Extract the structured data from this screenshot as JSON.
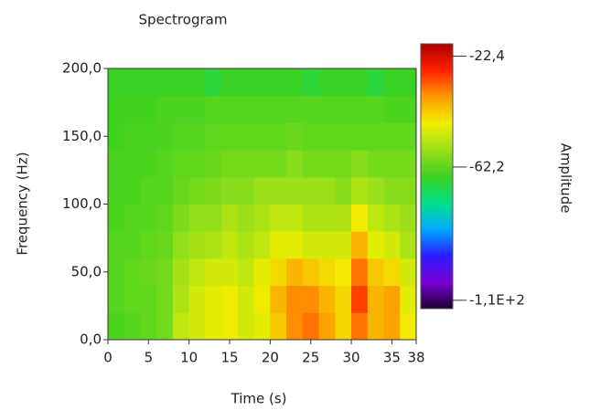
{
  "chart_data": {
    "type": "spectrogram",
    "title": "Spectrogram",
    "x_label": "Time (s)",
    "y_label": "Frequency (Hz)",
    "z_label": "Amplitude",
    "xlim": [
      0,
      38
    ],
    "xticks": [
      0,
      5,
      10,
      15,
      20,
      25,
      30,
      35,
      38
    ],
    "ylim": [
      0,
      200
    ],
    "yticks": [
      {
        "value": 0,
        "label": "0,0"
      },
      {
        "value": 50,
        "label": "50,0"
      },
      {
        "value": 100,
        "label": "100,0"
      },
      {
        "value": 150,
        "label": "150,0"
      },
      {
        "value": 200,
        "label": "200,0"
      }
    ],
    "zlim": [
      -113,
      -18
    ],
    "zticks": [
      {
        "value": -22.4,
        "label": "-22,4"
      },
      {
        "value": -62.2,
        "label": "-62,2"
      },
      {
        "value": -110,
        "label": "-1,1E+2"
      }
    ],
    "colormap": [
      "#1a0030",
      "#7a00d6",
      "#2a1cff",
      "#00aaff",
      "#00e08a",
      "#3cd11e",
      "#9be01a",
      "#f0f000",
      "#ff9a00",
      "#ff2000",
      "#b00000"
    ],
    "xbins": [
      0,
      2,
      4,
      6,
      8,
      10,
      12,
      14,
      16,
      18,
      20,
      22,
      24,
      26,
      28,
      30,
      32,
      34,
      36,
      38
    ],
    "ybins": [
      0,
      20,
      40,
      60,
      80,
      100,
      120,
      140,
      160,
      180,
      200
    ],
    "z": [
      [
        -64,
        -63,
        -62,
        -60,
        -52,
        -50,
        -48,
        -46,
        -50,
        -48,
        -42,
        -36,
        -34,
        -38,
        -44,
        -34,
        -40,
        -38,
        -46
      ],
      [
        -63,
        -62,
        -62,
        -60,
        -54,
        -50,
        -48,
        -46,
        -50,
        -46,
        -40,
        -36,
        -36,
        -40,
        -44,
        -30,
        -40,
        -38,
        -48
      ],
      [
        -63,
        -62,
        -61,
        -60,
        -55,
        -52,
        -50,
        -50,
        -52,
        -48,
        -44,
        -40,
        -42,
        -44,
        -46,
        -34,
        -42,
        -44,
        -50
      ],
      [
        -63,
        -63,
        -62,
        -61,
        -57,
        -55,
        -54,
        -52,
        -54,
        -52,
        -48,
        -48,
        -50,
        -50,
        -50,
        -40,
        -48,
        -50,
        -54
      ],
      [
        -64,
        -63,
        -63,
        -62,
        -59,
        -57,
        -57,
        -54,
        -56,
        -54,
        -52,
        -52,
        -54,
        -54,
        -54,
        -46,
        -52,
        -54,
        -56
      ],
      [
        -64,
        -64,
        -63,
        -63,
        -61,
        -60,
        -59,
        -58,
        -58,
        -56,
        -56,
        -56,
        -56,
        -56,
        -58,
        -54,
        -56,
        -58,
        -58
      ],
      [
        -64,
        -64,
        -64,
        -63,
        -62,
        -62,
        -61,
        -60,
        -60,
        -60,
        -60,
        -58,
        -60,
        -60,
        -60,
        -58,
        -60,
        -60,
        -60
      ],
      [
        -65,
        -64,
        -64,
        -64,
        -63,
        -63,
        -62,
        -62,
        -62,
        -62,
        -62,
        -61,
        -62,
        -62,
        -62,
        -62,
        -62,
        -62,
        -62
      ],
      [
        -65,
        -65,
        -65,
        -64,
        -64,
        -64,
        -63,
        -63,
        -63,
        -63,
        -63,
        -63,
        -63,
        -63,
        -63,
        -63,
        -63,
        -64,
        -64
      ],
      [
        -66,
        -66,
        -66,
        -66,
        -66,
        -66,
        -68,
        -66,
        -66,
        -66,
        -66,
        -66,
        -68,
        -66,
        -66,
        -66,
        -68,
        -66,
        -66
      ]
    ]
  }
}
